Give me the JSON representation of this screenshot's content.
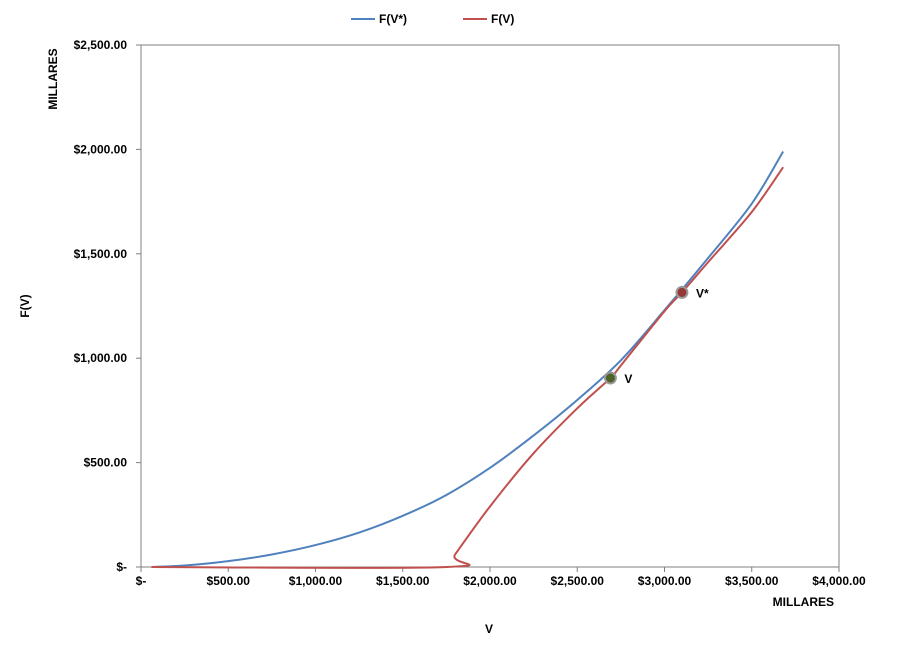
{
  "chart_data": {
    "type": "line",
    "grid": false,
    "legend_position": "top",
    "xlim": [
      0,
      4000
    ],
    "ylim": [
      0,
      2500
    ],
    "x_ticks": [
      0,
      500,
      1000,
      1500,
      2000,
      2500,
      3000,
      3500,
      4000
    ],
    "y_ticks": [
      0,
      500,
      1000,
      1500,
      2000,
      2500
    ],
    "x_tick_labels": [
      "$-",
      "$500.00",
      "$1,000.00",
      "$1,500.00",
      "$2,000.00",
      "$2,500.00",
      "$3,000.00",
      "$3,500.00",
      "$4,000.00"
    ],
    "y_tick_labels": [
      "$-",
      "$500.00",
      "$1,000.00",
      "$1,500.00",
      "$2,000.00",
      "$2,500.00"
    ],
    "xlabel": "V",
    "ylabel": "F(V)",
    "x_units": "MILLARES",
    "y_units": "MILLARES",
    "series": [
      {
        "name": "F(V*)",
        "color": "#4F81BD",
        "x": [
          60,
          250,
          500,
          750,
          1000,
          1250,
          1500,
          1750,
          2000,
          2250,
          2500,
          2750,
          3000,
          3250,
          3500,
          3680
        ],
        "y": [
          0,
          7,
          28,
          60,
          105,
          165,
          245,
          345,
          475,
          630,
          800,
          990,
          1230,
          1480,
          1740,
          1990
        ]
      },
      {
        "name": "F(V)",
        "color": "#C0504D",
        "x": [
          60,
          1750,
          1800,
          2000,
          2250,
          2500,
          2690,
          2750,
          3000,
          3100,
          3250,
          3500,
          3680
        ],
        "y": [
          0,
          0,
          60,
          290,
          545,
          760,
          905,
          965,
          1225,
          1315,
          1460,
          1700,
          1915
        ]
      }
    ],
    "points": [
      {
        "label": "V",
        "x": 2690,
        "y": 905,
        "color": "#4F6228"
      },
      {
        "label": "V*",
        "x": 3100,
        "y": 1315,
        "color": "#953735"
      }
    ]
  }
}
